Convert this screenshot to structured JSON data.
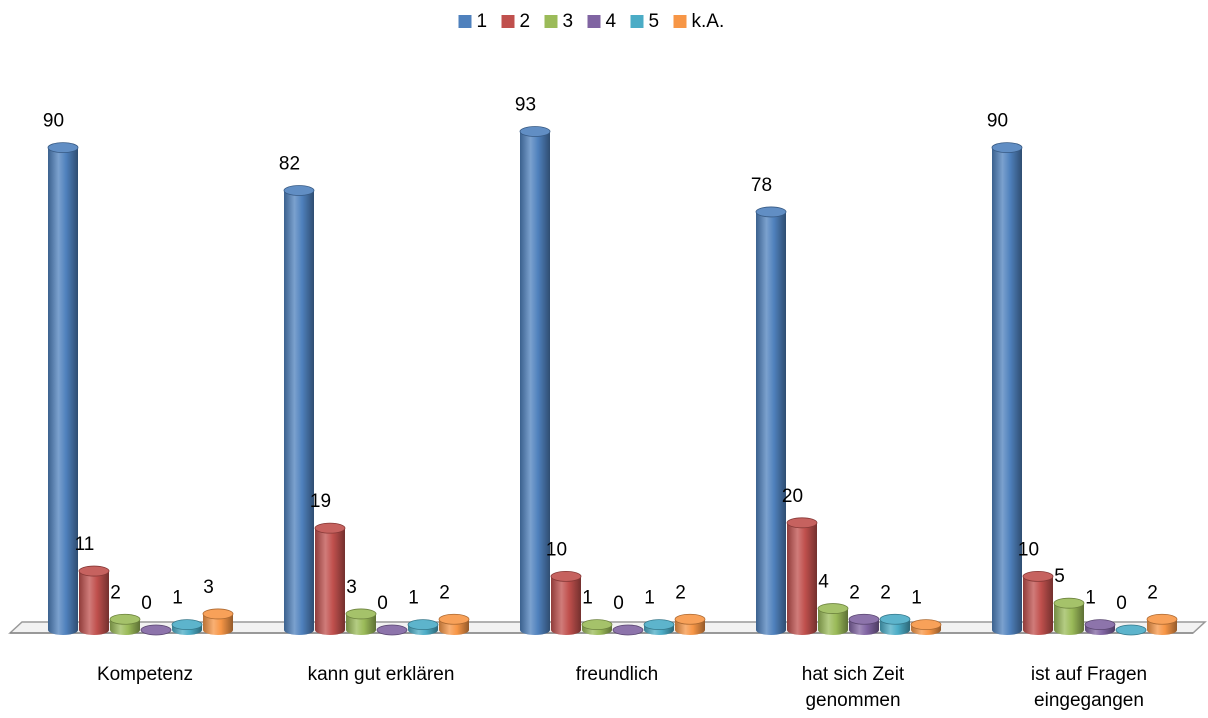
{
  "chart_data": {
    "type": "bar",
    "categories": [
      "Kompetenz",
      "kann gut erklären",
      "freundlich",
      "hat sich Zeit genommen",
      "ist auf Fragen eingegangen"
    ],
    "series": [
      {
        "name": "1",
        "color": "#4f81bd",
        "values": [
          90,
          82,
          93,
          78,
          90
        ]
      },
      {
        "name": "2",
        "color": "#c0504d",
        "values": [
          11,
          19,
          10,
          20,
          10
        ]
      },
      {
        "name": "3",
        "color": "#9bbb59",
        "values": [
          2,
          3,
          1,
          4,
          5
        ]
      },
      {
        "name": "4",
        "color": "#8064a2",
        "values": [
          0,
          0,
          0,
          2,
          1
        ]
      },
      {
        "name": "5",
        "color": "#4bacc6",
        "values": [
          1,
          1,
          1,
          2,
          0
        ]
      },
      {
        "name": "k.A.",
        "color": "#f79646",
        "values": [
          3,
          2,
          2,
          1,
          2
        ]
      }
    ],
    "legend": "top"
  }
}
